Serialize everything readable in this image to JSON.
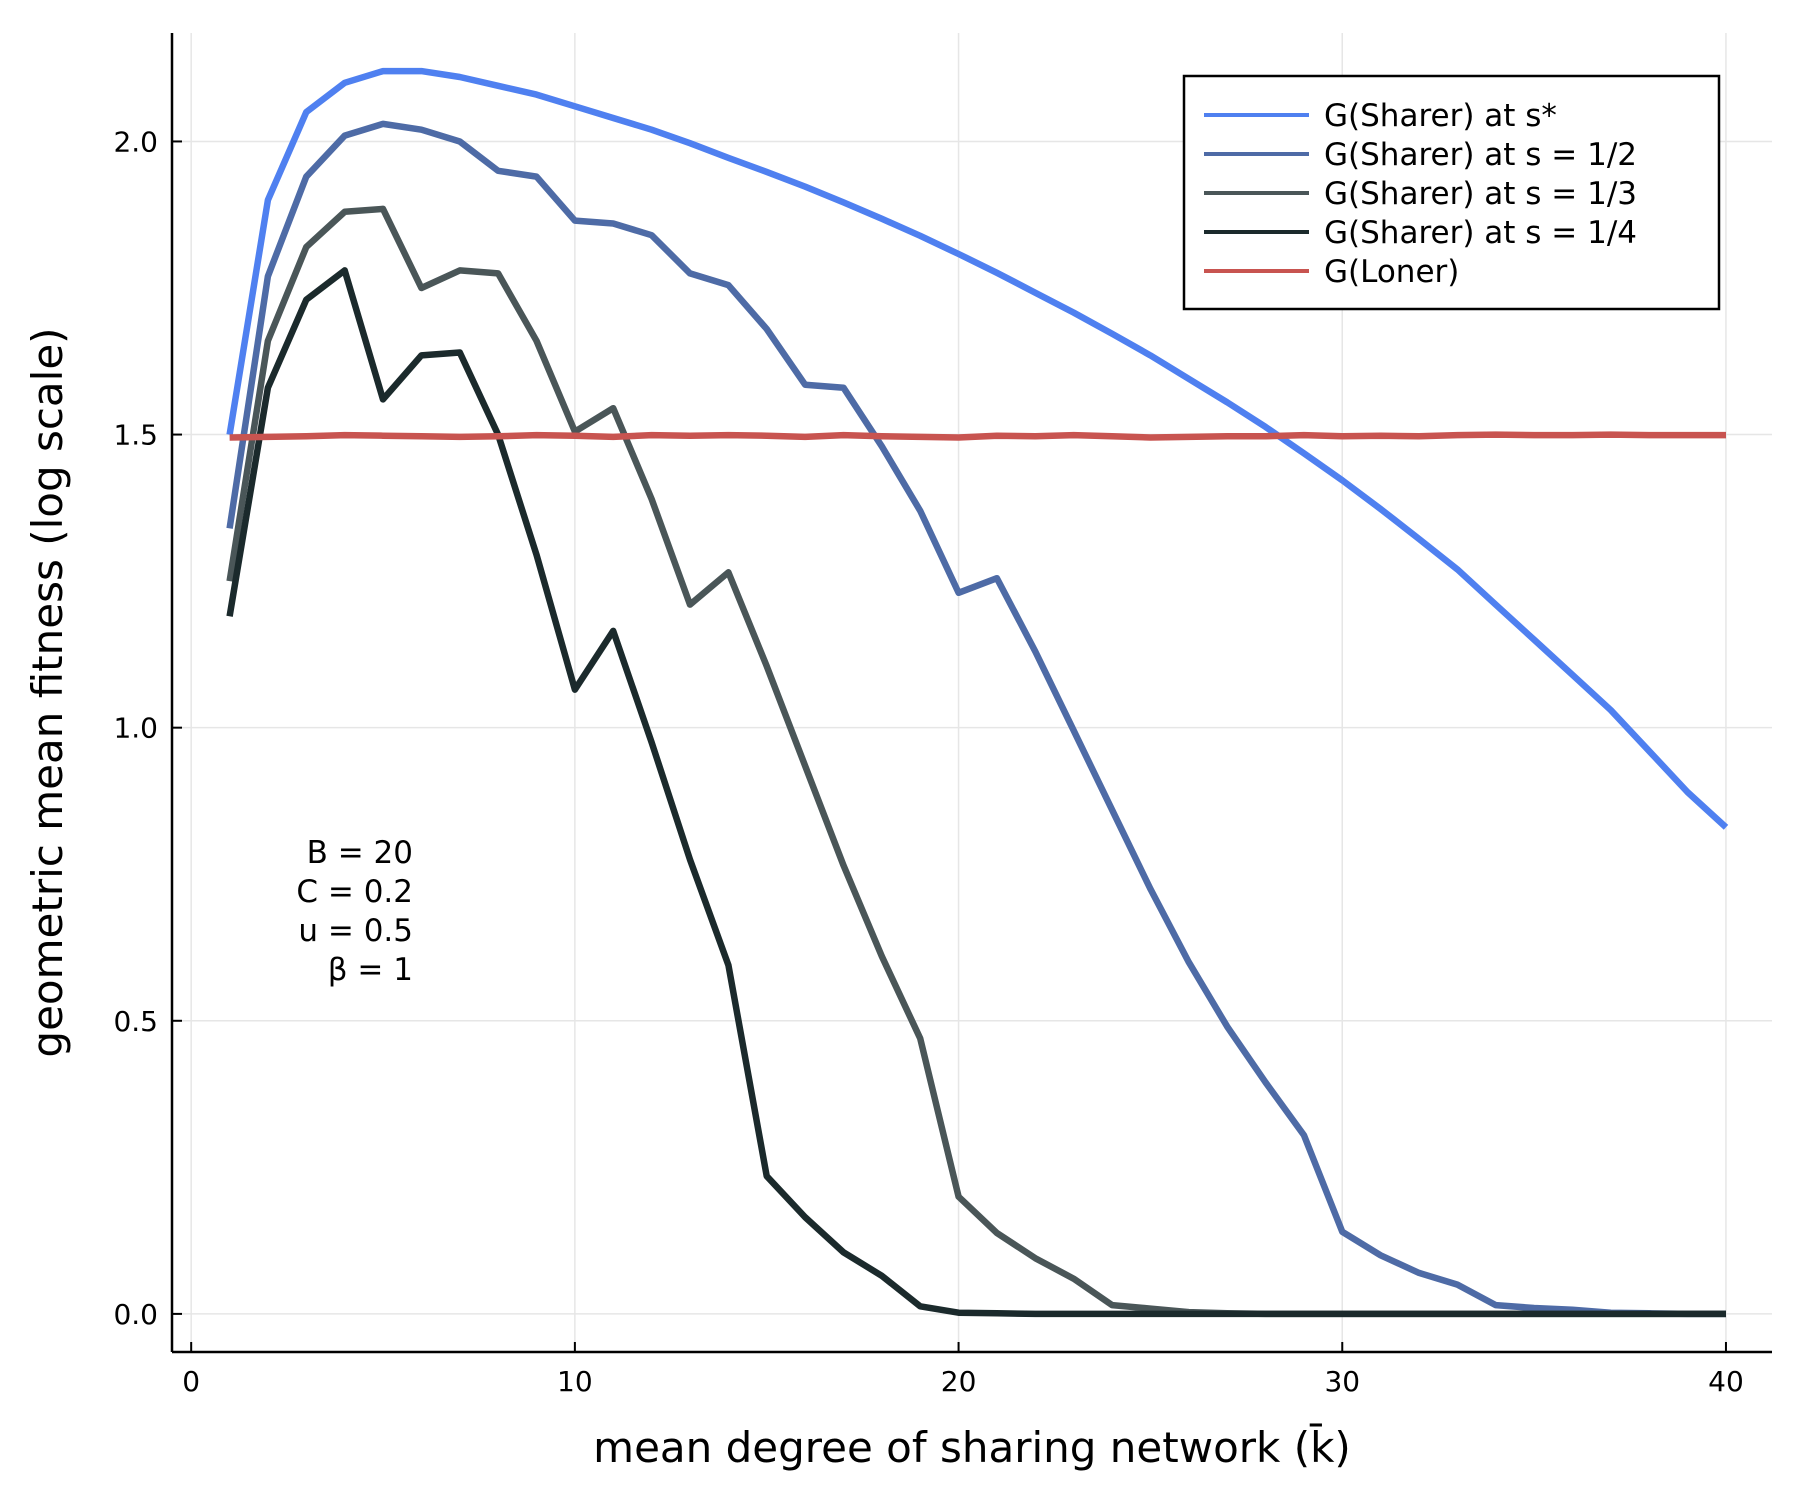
{
  "chart_data": {
    "type": "line",
    "title": "",
    "xlabel": "mean degree of sharing network (k̄)",
    "ylabel": "geometric mean fitness (log scale)",
    "xlim": [
      -0.5,
      41.2
    ],
    "ylim": [
      -0.065,
      2.185
    ],
    "xticks": [
      0,
      10,
      20,
      30,
      40
    ],
    "yticks": [
      0.0,
      0.5,
      1.0,
      1.5,
      2.0
    ],
    "xtick_labels": [
      "0",
      "10",
      "20",
      "30",
      "40"
    ],
    "ytick_labels": [
      "0.0",
      "0.5",
      "1.0",
      "1.5",
      "2.0"
    ],
    "grid": true,
    "legend_position": "top-right",
    "x": [
      1,
      2,
      3,
      4,
      5,
      6,
      7,
      8,
      9,
      10,
      11,
      12,
      13,
      14,
      15,
      16,
      17,
      18,
      19,
      20,
      21,
      22,
      23,
      24,
      25,
      26,
      27,
      28,
      29,
      30,
      31,
      32,
      33,
      34,
      35,
      36,
      37,
      38,
      39,
      40
    ],
    "series": [
      {
        "name": "G(Sharer) at s*",
        "color": "#4f80f0",
        "values": [
          1.5,
          1.9,
          2.05,
          2.1,
          2.12,
          2.12,
          2.11,
          2.095,
          2.08,
          2.06,
          2.04,
          2.02,
          1.997,
          1.972,
          1.948,
          1.923,
          1.896,
          1.868,
          1.839,
          1.808,
          1.776,
          1.742,
          1.708,
          1.672,
          1.635,
          1.595,
          1.555,
          1.513,
          1.468,
          1.422,
          1.373,
          1.322,
          1.27,
          1.21,
          1.15,
          1.09,
          1.03,
          0.96,
          0.89,
          0.83
        ]
      },
      {
        "name": "G(Sharer) at s = 1/2",
        "color": "#4e6ba6",
        "values": [
          1.34,
          1.77,
          1.94,
          2.01,
          2.03,
          2.02,
          2.0,
          1.95,
          1.94,
          1.865,
          1.86,
          1.84,
          1.775,
          1.755,
          1.68,
          1.585,
          1.58,
          1.48,
          1.37,
          1.23,
          1.255,
          1.13,
          0.995,
          0.86,
          0.725,
          0.6,
          0.49,
          0.395,
          0.305,
          0.14,
          0.1,
          0.07,
          0.05,
          0.015,
          0.01,
          0.007,
          0.002,
          0.001,
          0.0,
          0.0
        ]
      },
      {
        "name": "G(Sharer) at s = 1/3",
        "color": "#4a5658",
        "values": [
          1.25,
          1.66,
          1.82,
          1.88,
          1.885,
          1.75,
          1.78,
          1.775,
          1.66,
          1.505,
          1.545,
          1.39,
          1.21,
          1.265,
          1.105,
          0.935,
          0.765,
          0.61,
          0.47,
          0.2,
          0.138,
          0.095,
          0.06,
          0.015,
          0.009,
          0.003,
          0.001,
          0.0,
          0.0,
          0.0,
          0.0,
          0.0,
          0.0,
          0.0,
          0.0,
          0.0,
          0.0,
          0.0,
          0.0,
          0.0
        ]
      },
      {
        "name": "G(Sharer) at s = 1/4",
        "color": "#1b2a2c",
        "values": [
          1.19,
          1.58,
          1.73,
          1.78,
          1.56,
          1.635,
          1.64,
          1.5,
          1.295,
          1.065,
          1.165,
          0.975,
          0.775,
          0.595,
          0.235,
          0.165,
          0.105,
          0.065,
          0.013,
          0.002,
          0.001,
          0.0,
          0.0,
          0.0,
          0.0,
          0.0,
          0.0,
          0.0,
          0.0,
          0.0,
          0.0,
          0.0,
          0.0,
          0.0,
          0.0,
          0.0,
          0.0,
          0.0,
          0.0,
          0.0
        ]
      },
      {
        "name": "G(Loner)",
        "color": "#c85450",
        "values": [
          1.495,
          1.496,
          1.497,
          1.499,
          1.498,
          1.497,
          1.496,
          1.497,
          1.499,
          1.498,
          1.496,
          1.499,
          1.498,
          1.499,
          1.498,
          1.496,
          1.499,
          1.497,
          1.496,
          1.495,
          1.498,
          1.497,
          1.499,
          1.497,
          1.495,
          1.496,
          1.497,
          1.497,
          1.499,
          1.497,
          1.498,
          1.497,
          1.499,
          1.5,
          1.499,
          1.499,
          1.5,
          1.499,
          1.499,
          1.499
        ]
      }
    ],
    "annotations": [
      "B = 20",
      "C = 0.2",
      "u = 0.5",
      "β = 1"
    ]
  }
}
